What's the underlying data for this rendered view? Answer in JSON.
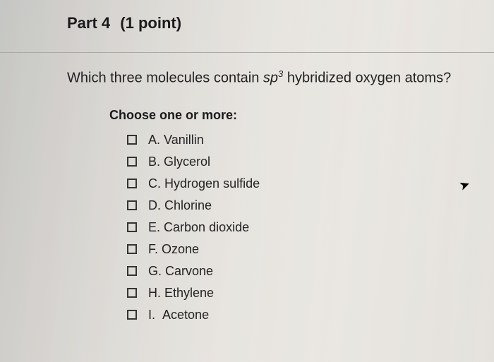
{
  "header": {
    "part_label": "Part 4",
    "points": "(1 point)"
  },
  "question": {
    "prefix": "Which three molecules contain ",
    "sp": "sp",
    "exp": "3",
    "suffix": " hybridized oxygen atoms?"
  },
  "choose_label": "Choose one or more:",
  "options": [
    {
      "letter": "A.",
      "text": "Vanillin"
    },
    {
      "letter": "B.",
      "text": "Glycerol"
    },
    {
      "letter": "C.",
      "text": "Hydrogen sulfide"
    },
    {
      "letter": "D.",
      "text": "Chlorine"
    },
    {
      "letter": "E.",
      "text": "Carbon dioxide"
    },
    {
      "letter": "F.",
      "text": "Ozone"
    },
    {
      "letter": "G.",
      "text": "Carvone"
    },
    {
      "letter": "H.",
      "text": "Ethylene"
    },
    {
      "letter": "I.",
      "text": "Acetone"
    }
  ]
}
